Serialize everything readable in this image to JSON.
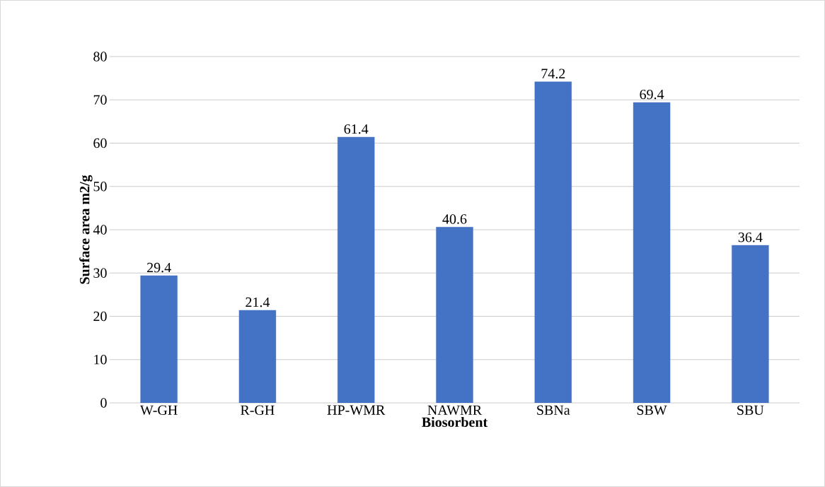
{
  "chart_data": {
    "type": "bar",
    "xlabel": "Biosorbent",
    "ylabel": "Surface area m2/g",
    "categories": [
      "W-GH",
      "R-GH",
      "HP-WMR",
      "NAWMR",
      "SBNa",
      "SBW",
      "SBU"
    ],
    "values": [
      29.4,
      21.4,
      61.4,
      40.6,
      74.2,
      69.4,
      36.4
    ],
    "color": "#4472c4",
    "ylim": [
      0,
      80
    ],
    "yticks": [
      0,
      10,
      20,
      30,
      40,
      50,
      60,
      70,
      80
    ],
    "grid": "y",
    "data_labels": true
  }
}
